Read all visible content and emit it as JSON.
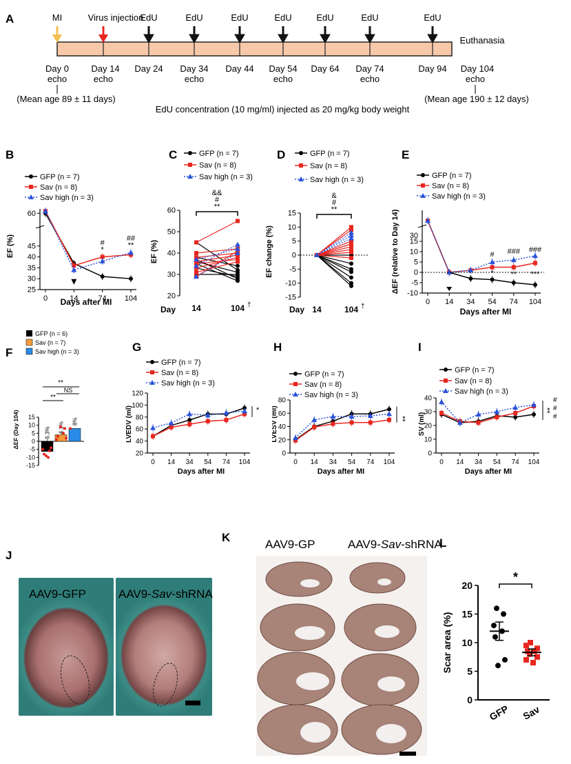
{
  "panel_labels": {
    "a": "A",
    "b": "B",
    "c": "C",
    "d": "D",
    "e": "E",
    "f": "F",
    "g": "G",
    "h": "H",
    "i": "I",
    "j": "J",
    "k": "K",
    "l": "L"
  },
  "timeline": {
    "events": [
      {
        "label": "MI",
        "color": "#f2c14e"
      },
      {
        "label": "Virus injection",
        "color": "#e8261f"
      },
      {
        "label": "EdU",
        "color": "#000000"
      }
    ],
    "end_label": "Euthanasia",
    "days": [
      "Day 0",
      "Day 14",
      "Day 24",
      "Day 34",
      "Day 44",
      "Day 54",
      "Day 64",
      "Day 74",
      "Day 94",
      "Day 104"
    ],
    "echo": "echo",
    "mean_age_start": "(Mean age 89 ± 11 days)",
    "mean_age_end": "(Mean age 190 ± 12 days)",
    "edu_note": "EdU concentration (10 mg/ml) injected as 20 mg/kg body weight"
  },
  "legend": {
    "gfp": "GFP (n = 7)",
    "sav": "Sav (n = 8)",
    "sav_high": "Sav high (n = 3)"
  },
  "legend_f": {
    "gfp": "GFP (n = 6)",
    "sav": "Sav (n = 7)",
    "sav_high": "Sav high (n = 3)"
  },
  "colors": {
    "gfp": "#000000",
    "sav": "#e8261f",
    "sav_high": "#2952d9",
    "bar_gfp": "#000000",
    "bar_sav": "#f39c3c",
    "bar_sav_high": "#2a8ae6"
  },
  "axis_text": {
    "days_after_mi": "Days after MI",
    "day": "Day",
    "dagger": "†"
  },
  "chart_data": [
    {
      "panel": "B",
      "type": "line",
      "ylabel": "EF (%)",
      "xlabel": "Days after MI",
      "x": [
        "0",
        "14",
        "74",
        "104"
      ],
      "ylim": [
        25,
        62
      ],
      "series": [
        {
          "name": "GFP (n = 7)",
          "values": [
            60,
            37,
            31,
            30
          ]
        },
        {
          "name": "Sav (n = 8)",
          "values": [
            61,
            36,
            40,
            41
          ]
        },
        {
          "name": "Sav high (n = 3)",
          "values": [
            61,
            34,
            38,
            42
          ]
        }
      ],
      "annotations": [
        "*",
        "#",
        "**",
        "##"
      ]
    },
    {
      "panel": "C",
      "type": "line",
      "ylabel": "EF (%)",
      "x": [
        "14",
        "104"
      ],
      "ylim": [
        20,
        60
      ],
      "annotations": [
        "&&",
        "#",
        "**"
      ]
    },
    {
      "panel": "D",
      "type": "line",
      "ylabel": "EF change (%)",
      "x": [
        "14",
        "104"
      ],
      "ylim": [
        -15,
        15
      ],
      "annotations": [
        "&",
        "#",
        "**"
      ]
    },
    {
      "panel": "E",
      "type": "line",
      "ylabel": "ΔEF (relative to Day 14)",
      "xlabel": "Days after MI",
      "x": [
        "0",
        "14",
        "34",
        "54",
        "74",
        "104"
      ],
      "ylim": [
        -10,
        30
      ],
      "series": [
        {
          "name": "GFP (n = 7)",
          "values": [
            25,
            0,
            -3,
            -3.5,
            -5,
            -6
          ]
        },
        {
          "name": "Sav (n = 8)",
          "values": [
            25,
            0,
            1,
            2.5,
            2.5,
            4.5
          ]
        },
        {
          "name": "Sav high (n = 3)",
          "values": [
            25,
            0,
            1,
            5,
            6,
            8
          ]
        }
      ],
      "annotations": [
        "#",
        "###",
        "###",
        "*",
        "**",
        "***"
      ]
    },
    {
      "panel": "F",
      "type": "bar",
      "ylabel": "ΔEF (Day 104)",
      "ylim": [
        -15,
        15
      ],
      "categories": [
        "GFP",
        "Sav",
        "Sav high"
      ],
      "values": [
        -6.3,
        4.1,
        8
      ],
      "value_labels": [
        "−6.3%",
        "4.1%",
        "8%"
      ],
      "annotations": [
        "**",
        "NS",
        "**"
      ]
    },
    {
      "panel": "G",
      "type": "line",
      "ylabel": "LVEDV (ml)",
      "xlabel": "Days after MI",
      "x": [
        "0",
        "14",
        "34",
        "54",
        "74",
        "104"
      ],
      "ylim": [
        20,
        120
      ],
      "series": [
        {
          "name": "GFP (n = 7)",
          "values": [
            48,
            66,
            75,
            85,
            85,
            95
          ]
        },
        {
          "name": "Sav (n = 8)",
          "values": [
            48,
            63,
            68,
            73,
            75,
            85
          ]
        },
        {
          "name": "Sav high (n = 3)",
          "values": [
            62,
            70,
            85,
            83,
            87,
            90
          ]
        }
      ],
      "annotations": [
        "*"
      ]
    },
    {
      "panel": "H",
      "type": "line",
      "ylabel": "LVESV (ml)",
      "xlabel": "Days after MI",
      "x": [
        "0",
        "14",
        "34",
        "54",
        "74",
        "104"
      ],
      "ylim": [
        0,
        80
      ],
      "series": [
        {
          "name": "GFP (n = 7)",
          "values": [
            20,
            40,
            48,
            59,
            59,
            66
          ]
        },
        {
          "name": "Sav (n = 8)",
          "values": [
            19,
            39,
            44,
            46,
            46,
            50
          ]
        },
        {
          "name": "Sav high (n = 3)",
          "values": [
            23,
            50,
            55,
            55,
            56,
            59
          ]
        }
      ],
      "annotations": [
        "**"
      ]
    },
    {
      "panel": "I",
      "type": "line",
      "ylabel": "SV (ml)",
      "xlabel": "Days after MI",
      "x": [
        "0",
        "14",
        "34",
        "54",
        "74",
        "104"
      ],
      "ylim": [
        0,
        40
      ],
      "series": [
        {
          "name": "GFP (n = 7)",
          "values": [
            28,
            22,
            23,
            27,
            26,
            28
          ]
        },
        {
          "name": "Sav (n = 8)",
          "values": [
            29,
            23,
            22,
            26,
            29,
            34
          ]
        },
        {
          "name": "Sav high (n = 3)",
          "values": [
            37,
            22,
            28,
            30,
            33,
            35
          ]
        }
      ],
      "annotations": [
        "**",
        "#",
        "#",
        "#"
      ]
    },
    {
      "panel": "L",
      "type": "scatter",
      "ylabel": "Scar area (%)",
      "ylim": [
        0,
        20
      ],
      "categories": [
        "GFP",
        "Sav"
      ],
      "points": {
        "GFP": [
          16,
          15,
          13,
          12,
          11,
          7,
          6
        ],
        "Sav": [
          10,
          9.5,
          9,
          8.5,
          8.5,
          8,
          7.5,
          7,
          6.5
        ]
      },
      "means": [
        12,
        8.3
      ],
      "annotations": [
        "*"
      ]
    }
  ],
  "photos": {
    "j_left": "AAV9-GFP",
    "j_right_a": "AAV9-",
    "j_right_b": "Sav",
    "j_right_c": "-shRNA",
    "k_left": "AAV9-GP",
    "k_right_a": "AAV9-",
    "k_right_b": "Sav",
    "k_right_c": "-shRNA"
  }
}
